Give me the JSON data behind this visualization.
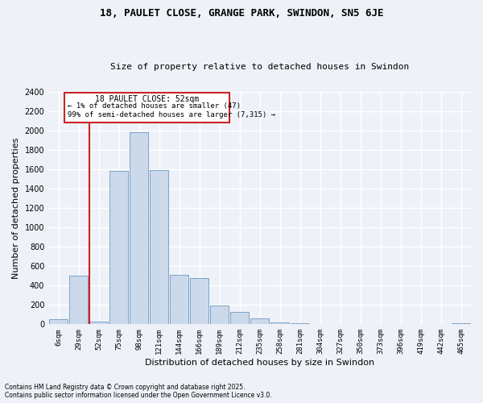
{
  "title": "18, PAULET CLOSE, GRANGE PARK, SWINDON, SN5 6JE",
  "subtitle": "Size of property relative to detached houses in Swindon",
  "xlabel": "Distribution of detached houses by size in Swindon",
  "ylabel": "Number of detached properties",
  "footnote1": "Contains HM Land Registry data © Crown copyright and database right 2025.",
  "footnote2": "Contains public sector information licensed under the Open Government Licence v3.0.",
  "annotation_title": "18 PAULET CLOSE: 52sqm",
  "annotation_line1": "← 1% of detached houses are smaller (47)",
  "annotation_line2": "99% of semi-detached houses are larger (7,315) →",
  "bar_color": "#ccd9ea",
  "bar_edge_color": "#7ba3c8",
  "highlight_color": "#cc2222",
  "highlight_bar_index": 2,
  "bins": [
    "6sqm",
    "29sqm",
    "52sqm",
    "75sqm",
    "98sqm",
    "121sqm",
    "144sqm",
    "166sqm",
    "189sqm",
    "212sqm",
    "235sqm",
    "258sqm",
    "281sqm",
    "304sqm",
    "327sqm",
    "350sqm",
    "373sqm",
    "396sqm",
    "419sqm",
    "442sqm",
    "465sqm"
  ],
  "values": [
    50,
    500,
    30,
    1580,
    1980,
    1590,
    510,
    480,
    195,
    130,
    60,
    20,
    10,
    5,
    3,
    2,
    2,
    0,
    0,
    0,
    10
  ],
  "ylim": [
    0,
    2400
  ],
  "yticks": [
    0,
    200,
    400,
    600,
    800,
    1000,
    1200,
    1400,
    1600,
    1800,
    2000,
    2200,
    2400
  ],
  "background_color": "#eef2f8",
  "plot_bg_color": "#eef2f8",
  "grid_color": "#ffffff"
}
